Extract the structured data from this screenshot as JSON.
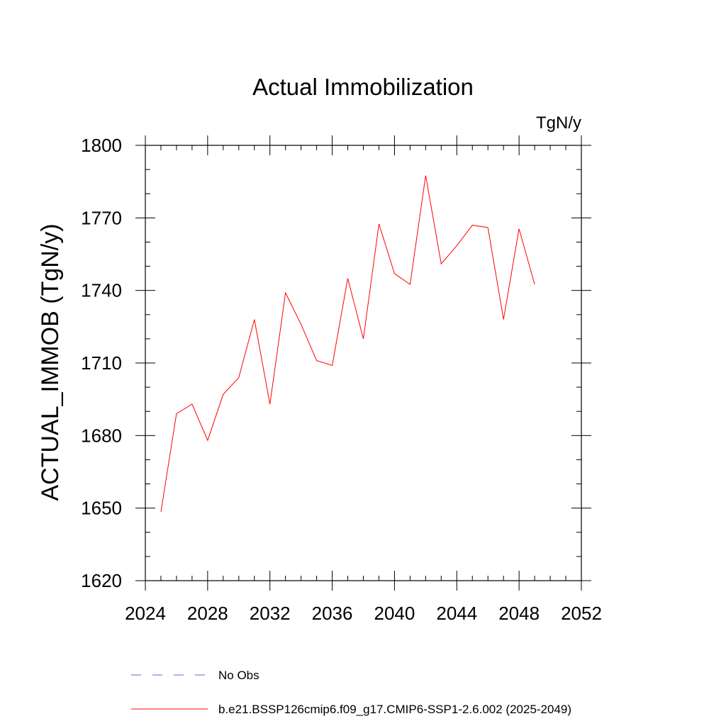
{
  "chart_data": {
    "type": "line",
    "title": "Actual Immobilization",
    "units": "TgN/y",
    "xlabel": "",
    "ylabel": "ACTUAL_IMMOB  (TgN/y)",
    "xlim": [
      2024,
      2052
    ],
    "ylim": [
      1620,
      1800
    ],
    "xticks": [
      2024,
      2028,
      2032,
      2036,
      2040,
      2044,
      2048,
      2052
    ],
    "yticks": [
      1620,
      1650,
      1680,
      1710,
      1740,
      1770,
      1800
    ],
    "x_minor_step": 1,
    "y_minor_step": 10,
    "x_tick_labels": [
      "2024",
      "2028",
      "2032",
      "2036",
      "2040",
      "2044",
      "2048",
      "2052"
    ],
    "y_tick_labels": [
      "1620",
      "1650",
      "1680",
      "1710",
      "1740",
      "1770",
      "1800"
    ],
    "series": [
      {
        "name": "b.e21.BSSP126cmip6.f09_g17.CMIP6-SSP1-2.6.002 (2025-2049)",
        "color": "#ff0000",
        "x": [
          2025,
          2026,
          2027,
          2028,
          2029,
          2030,
          2031,
          2032,
          2033,
          2034,
          2035,
          2036,
          2037,
          2038,
          2039,
          2040,
          2041,
          2042,
          2043,
          2044,
          2045,
          2046,
          2047,
          2048,
          2049
        ],
        "values": [
          1648.5,
          1689,
          1693,
          1678,
          1697,
          1704,
          1728,
          1693,
          1739,
          1726,
          1711,
          1709,
          1745,
          1720,
          1767.5,
          1747,
          1742.5,
          1787.5,
          1751,
          1758.5,
          1767,
          1766,
          1728,
          1765.5,
          1742.5
        ]
      }
    ],
    "legend": [
      {
        "label": "No Obs",
        "color": "#6666cc",
        "style": "dashed"
      },
      {
        "label": "b.e21.BSSP126cmip6.f09_g17.CMIP6-SSP1-2.6.002 (2025-2049)",
        "color": "#ff0000",
        "style": "solid"
      }
    ]
  }
}
